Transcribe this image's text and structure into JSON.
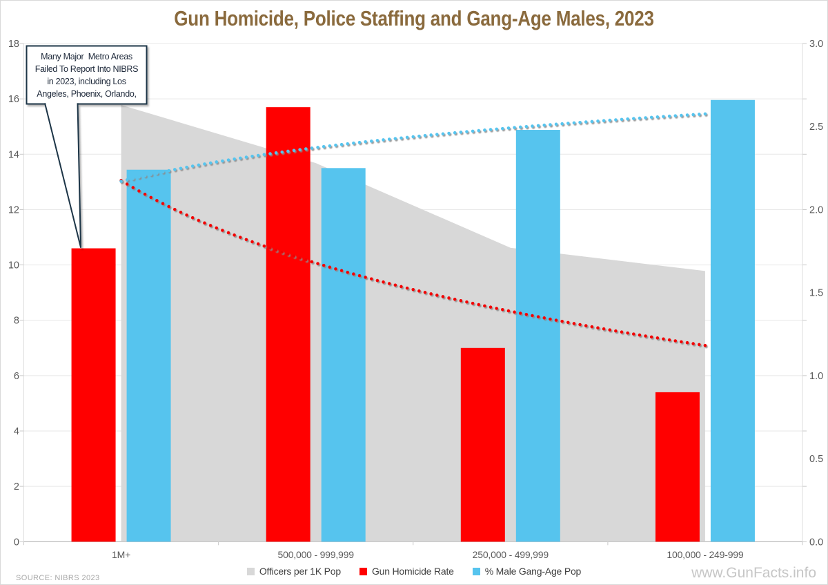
{
  "title": {
    "text": "Gun Homicide, Police Staffing and Gang-Age Males, 2023",
    "color": "#8A6A3D"
  },
  "annotation": {
    "lines": [
      "Many Major  Metro Areas",
      "Failed To Report Into NIBRS",
      "in 2023, including Los",
      "Angeles, Phoenix, Orlando,"
    ],
    "border_color": "#1F3547",
    "points_to": "1M+ Gun Homicide Rate bar"
  },
  "footer": {
    "source": "SOURCE: NIBRS 2023",
    "watermark": "www.GunFacts.info"
  },
  "chart_data": {
    "type": "combo",
    "title": "Gun Homicide, Police Staffing and Gang-Age Males, 2023",
    "categories": [
      "1M+",
      "500,000 - 999,999",
      "250,000 - 499,999",
      "100,000 - 249-999"
    ],
    "left_axis": {
      "min": 0,
      "max": 18,
      "step": 2,
      "decimals": 0
    },
    "right_axis": {
      "min": 0,
      "max": 3,
      "step": 0.5,
      "decimals": 1
    },
    "grid": true,
    "legend_position": "bottom",
    "series": [
      {
        "name": "Officers per 1K Pop",
        "type": "area",
        "axis": "right",
        "color": "#D8D8D8",
        "values": [
          2.63,
          2.28,
          1.77,
          1.63
        ]
      },
      {
        "name": "Gun Homicide Rate",
        "type": "bar",
        "axis": "left",
        "color": "#FF0000",
        "values": [
          10.6,
          15.7,
          7.0,
          5.4
        ]
      },
      {
        "name": "% Male Gang-Age Pop",
        "type": "bar",
        "axis": "right",
        "color": "#56C4EE",
        "values": [
          2.24,
          2.25,
          2.48,
          2.66
        ]
      }
    ],
    "trendlines": [
      {
        "series": "Gun Homicide Rate",
        "axis": "left",
        "color": "#F20000",
        "style": "dotted",
        "formula": "y = a + b*ln(categoryIndex)",
        "log_fit": {
          "a": 13.05,
          "b": -4.3
        },
        "start_value": 13.05,
        "end_value": 7.09
      },
      {
        "series": "% Male Gang-Age Pop",
        "axis": "right",
        "color": "#56C4EE",
        "style": "dotted",
        "formula": "y = a + b*ln(categoryIndex)",
        "log_fit": {
          "a": 2.17,
          "b": 0.293
        },
        "start_value": 2.17,
        "end_value": 2.58
      }
    ],
    "styles": {
      "grid_color": "#E7E7E7",
      "baseline_color": "#BFBFBF",
      "axis_line_color": "#DCDCDC",
      "tick_color": "#C9C9C9",
      "axis_text_color": "#595959"
    }
  }
}
